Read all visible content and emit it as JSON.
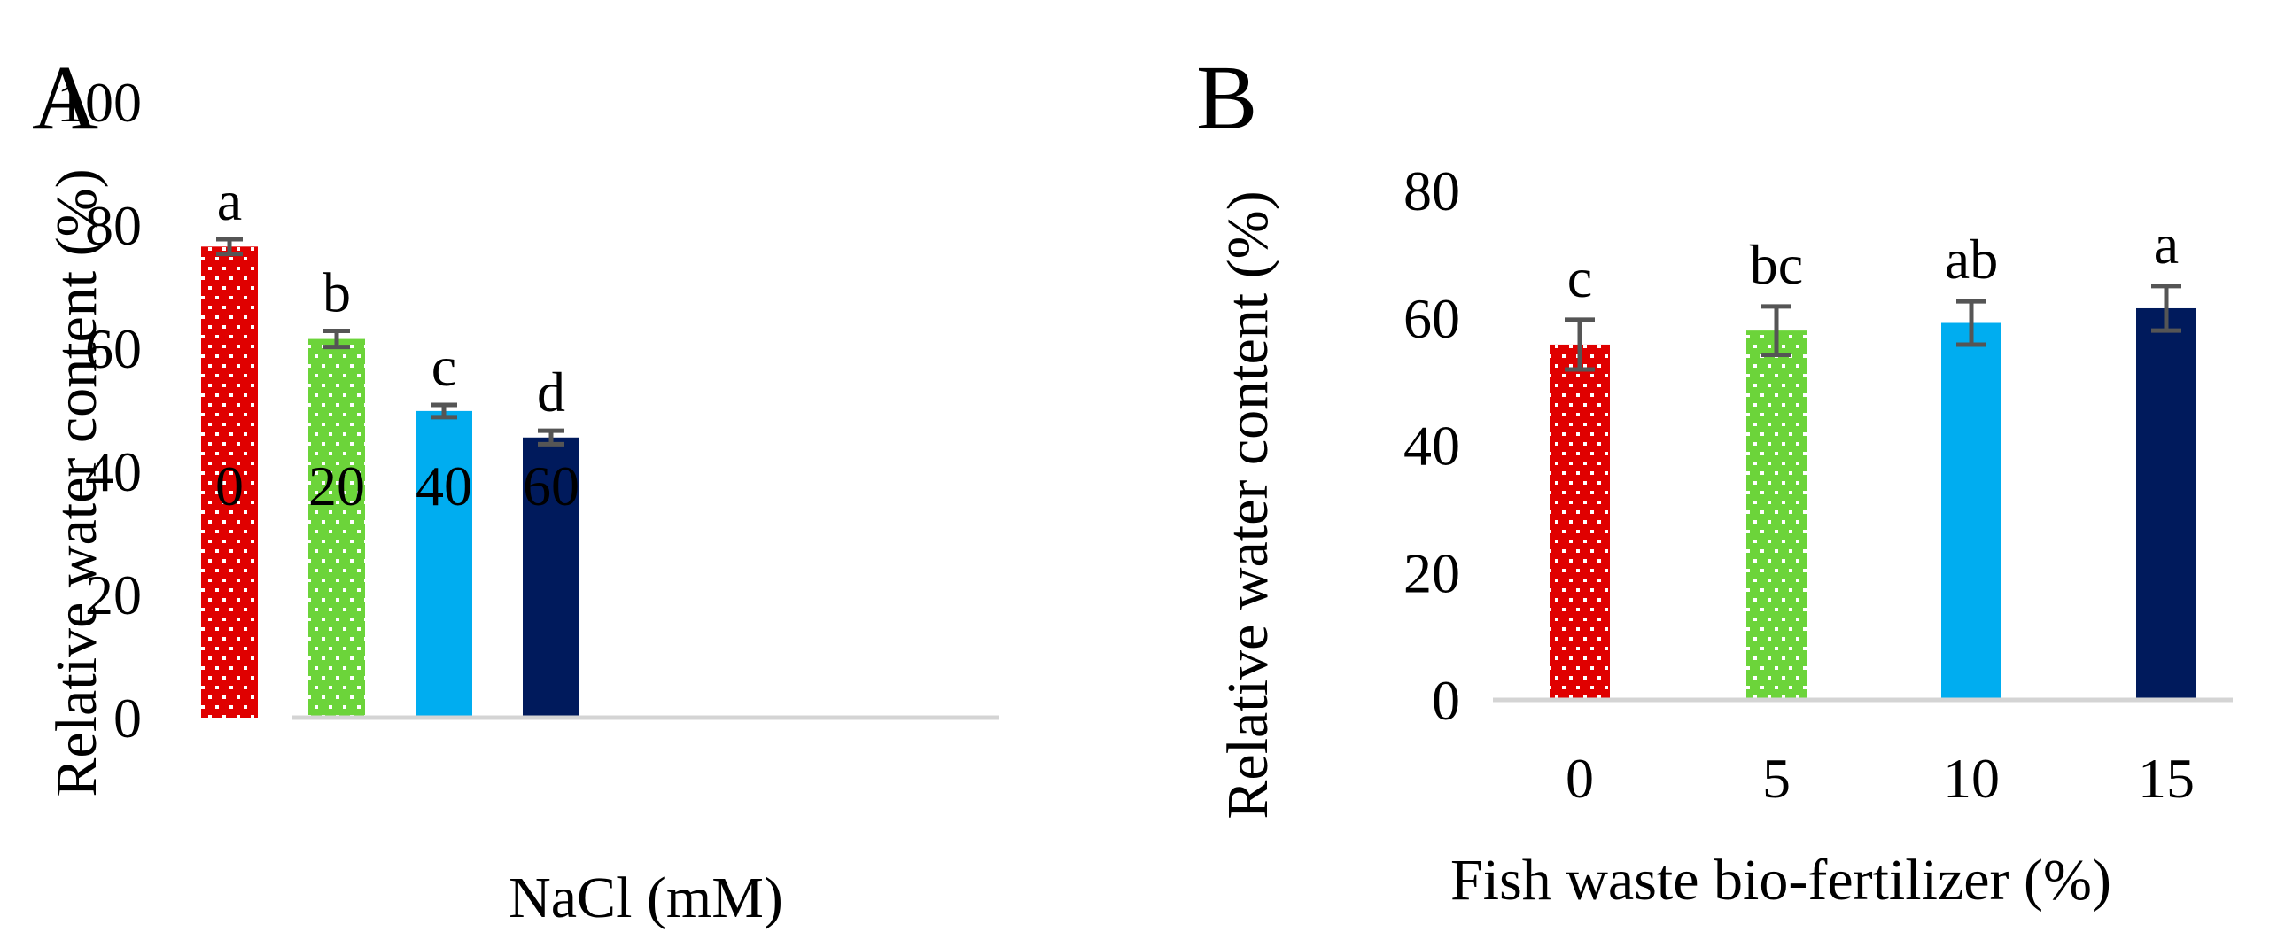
{
  "colors": {
    "red": "#e00000",
    "green": "#6cd43a",
    "light_blue": "#00adf0",
    "navy": "#001a5c",
    "error_bar": "#555555",
    "baseline": "#d4d4d4"
  },
  "chart_data": [
    {
      "type": "bar",
      "panel": "A",
      "categories": [
        "0",
        "20",
        "40",
        "60"
      ],
      "values": [
        76.5,
        61.5,
        49.8,
        45.5
      ],
      "errors": [
        1.2,
        1.3,
        1.0,
        1.1
      ],
      "letters": [
        "a",
        "b",
        "c",
        "d"
      ],
      "bar_colors": [
        "#e00000",
        "#6cd43a",
        "#00adf0",
        "#001a5c"
      ],
      "bar_patterns": [
        "dots",
        "dots",
        "solid",
        "solid"
      ],
      "xlabel": "NaCl (mM)",
      "ylabel": "Relative water content (%)",
      "ylim": [
        0,
        100
      ],
      "yticks": [
        "0",
        "20",
        "40",
        "60",
        "80",
        "100"
      ],
      "grid": false
    },
    {
      "type": "bar",
      "panel": "B",
      "categories": [
        "0",
        "5",
        "10",
        "15"
      ],
      "values": [
        55.8,
        58.0,
        59.2,
        61.5
      ],
      "errors": [
        3.9,
        3.8,
        3.4,
        3.5
      ],
      "letters": [
        "c",
        "bc",
        "ab",
        "a"
      ],
      "bar_colors": [
        "#e00000",
        "#6cd43a",
        "#00adf0",
        "#001a5c"
      ],
      "bar_patterns": [
        "dots",
        "dots",
        "solid",
        "solid"
      ],
      "xlabel": "Fish waste bio-fertilizer (%)",
      "ylabel": "Relative water content (%)",
      "ylim": [
        0,
        80
      ],
      "yticks": [
        "0",
        "20",
        "40",
        "60",
        "80"
      ],
      "grid": false
    }
  ]
}
